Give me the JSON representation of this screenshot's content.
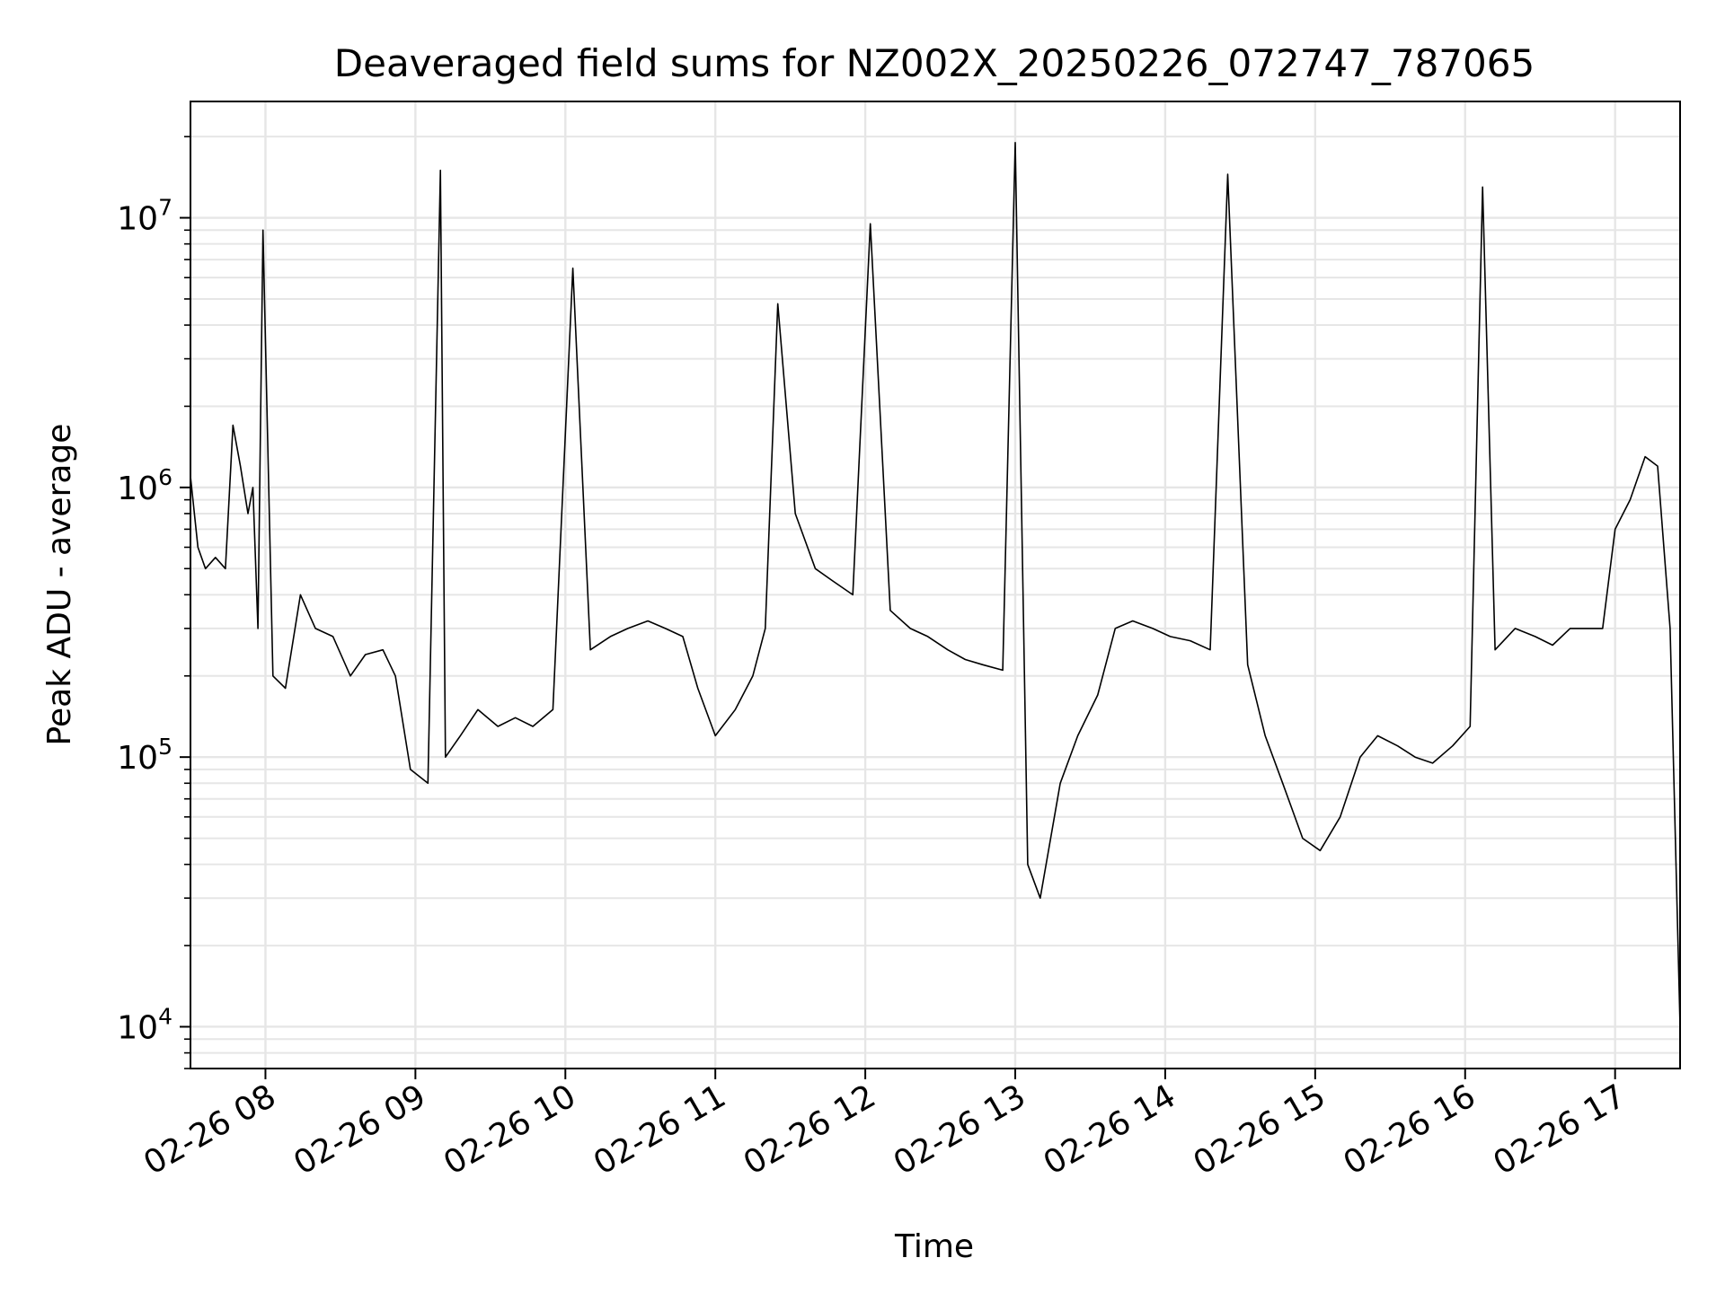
{
  "chart_data": {
    "type": "line",
    "title": "Deaveraged field sums for NZ002X_20250226_072747_787065",
    "xlabel": "Time",
    "ylabel": "Peak ADU - average",
    "y_scale": "log",
    "ylim": [
      7000,
      27000000
    ],
    "xlim": [
      "2025-02-26 07:30",
      "2025-02-26 17:26"
    ],
    "grid": "on (major and minor)",
    "line_color": "#000000",
    "grid_color": "#e6e6e6",
    "x_tick_labels": [
      "02-26 08",
      "02-26 09",
      "02-26 10",
      "02-26 11",
      "02-26 12",
      "02-26 13",
      "02-26 14",
      "02-26 15",
      "02-26 16",
      "02-26 17"
    ],
    "x_ticks": [
      "2025-02-26 08:00",
      "2025-02-26 09:00",
      "2025-02-26 10:00",
      "2025-02-26 11:00",
      "2025-02-26 12:00",
      "2025-02-26 13:00",
      "2025-02-26 14:00",
      "2025-02-26 15:00",
      "2025-02-26 16:00",
      "2025-02-26 17:00"
    ],
    "y_ticks": [
      {
        "value": 10000,
        "base": "10",
        "exp": "4"
      },
      {
        "value": 100000,
        "base": "10",
        "exp": "5"
      },
      {
        "value": 1000000,
        "base": "10",
        "exp": "6"
      },
      {
        "value": 10000000,
        "base": "10",
        "exp": "7"
      }
    ],
    "series": [
      {
        "x": [
          "2025-02-26 07:30",
          "2025-02-26 07:33",
          "2025-02-26 07:36",
          "2025-02-26 07:40",
          "2025-02-26 07:44",
          "2025-02-26 07:47",
          "2025-02-26 07:50",
          "2025-02-26 07:53",
          "2025-02-26 07:55",
          "2025-02-26 07:57",
          "2025-02-26 07:59",
          "2025-02-26 08:03",
          "2025-02-26 08:08",
          "2025-02-26 08:14",
          "2025-02-26 08:20",
          "2025-02-26 08:27",
          "2025-02-26 08:34",
          "2025-02-26 08:40",
          "2025-02-26 08:47",
          "2025-02-26 08:52",
          "2025-02-26 08:58",
          "2025-02-26 09:05",
          "2025-02-26 09:10",
          "2025-02-26 09:12",
          "2025-02-26 09:18",
          "2025-02-26 09:25",
          "2025-02-26 09:33",
          "2025-02-26 09:40",
          "2025-02-26 09:47",
          "2025-02-26 09:55",
          "2025-02-26 10:03",
          "2025-02-26 10:10",
          "2025-02-26 10:18",
          "2025-02-26 10:25",
          "2025-02-26 10:33",
          "2025-02-26 10:40",
          "2025-02-26 10:47",
          "2025-02-26 10:53",
          "2025-02-26 11:00",
          "2025-02-26 11:08",
          "2025-02-26 11:15",
          "2025-02-26 11:20",
          "2025-02-26 11:25",
          "2025-02-26 11:32",
          "2025-02-26 11:40",
          "2025-02-26 11:47",
          "2025-02-26 11:55",
          "2025-02-26 12:02",
          "2025-02-26 12:10",
          "2025-02-26 12:18",
          "2025-02-26 12:25",
          "2025-02-26 12:33",
          "2025-02-26 12:40",
          "2025-02-26 12:47",
          "2025-02-26 12:55",
          "2025-02-26 13:00",
          "2025-02-26 13:05",
          "2025-02-26 13:10",
          "2025-02-26 13:18",
          "2025-02-26 13:25",
          "2025-02-26 13:33",
          "2025-02-26 13:40",
          "2025-02-26 13:47",
          "2025-02-26 13:55",
          "2025-02-26 14:02",
          "2025-02-26 14:10",
          "2025-02-26 14:18",
          "2025-02-26 14:25",
          "2025-02-26 14:33",
          "2025-02-26 14:40",
          "2025-02-26 14:47",
          "2025-02-26 14:55",
          "2025-02-26 15:02",
          "2025-02-26 15:10",
          "2025-02-26 15:18",
          "2025-02-26 15:25",
          "2025-02-26 15:33",
          "2025-02-26 15:40",
          "2025-02-26 15:47",
          "2025-02-26 15:55",
          "2025-02-26 16:02",
          "2025-02-26 16:07",
          "2025-02-26 16:12",
          "2025-02-26 16:20",
          "2025-02-26 16:28",
          "2025-02-26 16:35",
          "2025-02-26 16:42",
          "2025-02-26 16:50",
          "2025-02-26 16:55",
          "2025-02-26 17:00",
          "2025-02-26 17:06",
          "2025-02-26 17:12",
          "2025-02-26 17:17",
          "2025-02-26 17:22",
          "2025-02-26 17:26"
        ],
        "y": [
          1100000,
          600000,
          500000,
          550000,
          500000,
          1700000,
          1200000,
          800000,
          1000000,
          300000,
          9000000,
          200000,
          180000,
          400000,
          300000,
          280000,
          200000,
          240000,
          250000,
          200000,
          90000,
          80000,
          15000000,
          100000,
          120000,
          150000,
          130000,
          140000,
          130000,
          150000,
          6500000,
          250000,
          280000,
          300000,
          320000,
          300000,
          280000,
          180000,
          120000,
          150000,
          200000,
          300000,
          4800000,
          800000,
          500000,
          450000,
          400000,
          9500000,
          350000,
          300000,
          280000,
          250000,
          230000,
          220000,
          210000,
          19000000,
          40000,
          30000,
          80000,
          120000,
          170000,
          300000,
          320000,
          300000,
          280000,
          270000,
          250000,
          14500000,
          220000,
          120000,
          80000,
          50000,
          45000,
          60000,
          100000,
          120000,
          110000,
          100000,
          95000,
          110000,
          130000,
          13000000,
          250000,
          300000,
          280000,
          260000,
          300000,
          300000,
          300000,
          700000,
          900000,
          1300000,
          1200000,
          300000,
          10000
        ]
      }
    ]
  }
}
